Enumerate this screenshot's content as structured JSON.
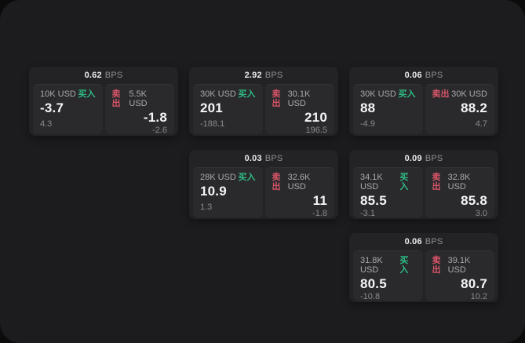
{
  "theme": {
    "backdrop": "#0b0b0b",
    "surface": "#1c1c1e",
    "card_bg": "#232325",
    "tile_bg": "#2a2a2c",
    "text_primary": "#f5f5f7",
    "text_secondary": "#a9a9ad",
    "text_muted": "#8a8a8e",
    "buy_color": "#2ebd85",
    "sell_color": "#d95568"
  },
  "labels": {
    "bps_unit": "BPS",
    "buy": "买入",
    "sell": "卖出"
  },
  "cards": [
    {
      "col": 1,
      "row": 1,
      "bps": "0.62",
      "buy": {
        "amount": "10K USD",
        "price": "-3.7",
        "change": "4.3"
      },
      "sell": {
        "amount": "5.5K USD",
        "price": "-1.8",
        "change": "-2.6"
      }
    },
    {
      "col": 2,
      "row": 1,
      "bps": "2.92",
      "buy": {
        "amount": "30K USD",
        "price": "201",
        "change": "-188.1"
      },
      "sell": {
        "amount": "30.1K USD",
        "price": "210",
        "change": "196.5"
      }
    },
    {
      "col": 3,
      "row": 1,
      "bps": "0.06",
      "buy": {
        "amount": "30K USD",
        "price": "88",
        "change": "-4.9"
      },
      "sell": {
        "amount": "30K USD",
        "price": "88.2",
        "change": "4.7"
      }
    },
    {
      "col": 2,
      "row": 2,
      "bps": "0.03",
      "buy": {
        "amount": "28K USD",
        "price": "10.9",
        "change": "1.3"
      },
      "sell": {
        "amount": "32.6K USD",
        "price": "11",
        "change": "-1.8"
      }
    },
    {
      "col": 3,
      "row": 2,
      "bps": "0.09",
      "buy": {
        "amount": "34.1K USD",
        "price": "85.5",
        "change": "-3.1"
      },
      "sell": {
        "amount": "32.8K USD",
        "price": "85.8",
        "change": "3.0"
      }
    },
    {
      "col": 3,
      "row": 3,
      "bps": "0.06",
      "buy": {
        "amount": "31.8K USD",
        "price": "80.5",
        "change": "-10.8"
      },
      "sell": {
        "amount": "39.1K USD",
        "price": "80.7",
        "change": "10.2"
      }
    }
  ]
}
